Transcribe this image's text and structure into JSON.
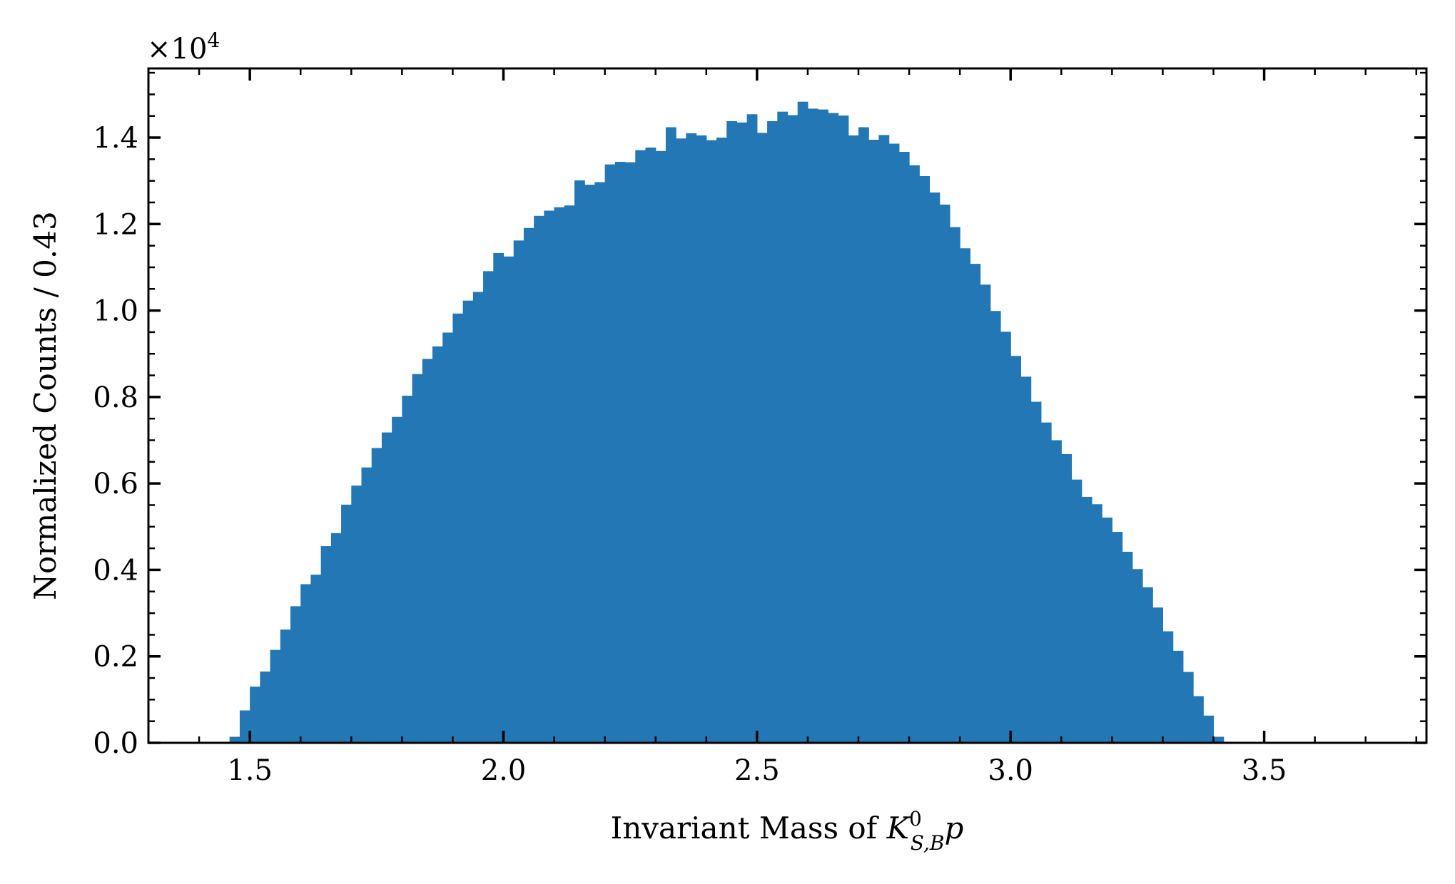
{
  "chart_data": {
    "type": "bar",
    "histogram": true,
    "color": "#2277b4",
    "xlabel_prefix": "Invariant Mass of ",
    "xlabel_math": {
      "base": "K",
      "sup": "0",
      "sub": "S,B",
      "tail": "p"
    },
    "ylabel": "Normalized Counts / 0.43",
    "y_multiplier": {
      "prefix": "×10",
      "exponent": "4"
    },
    "xlim": [
      1.3,
      3.82
    ],
    "ylim": [
      0,
      1.56
    ],
    "xticks": [
      1.5,
      2.0,
      2.5,
      3.0,
      3.5
    ],
    "xtick_labels": [
      "1.5",
      "2.0",
      "2.5",
      "3.0",
      "3.5"
    ],
    "yticks": [
      0.0,
      0.2,
      0.4,
      0.6,
      0.8,
      1.0,
      1.2,
      1.4
    ],
    "ytick_labels": [
      "0.0",
      "0.2",
      "0.4",
      "0.6",
      "0.8",
      "1.0",
      "1.2",
      "1.4"
    ],
    "bin_start": 1.46,
    "bin_width": 0.02,
    "values": [
      0.014,
      0.075,
      0.13,
      0.165,
      0.215,
      0.262,
      0.316,
      0.367,
      0.389,
      0.455,
      0.485,
      0.551,
      0.595,
      0.637,
      0.682,
      0.718,
      0.754,
      0.803,
      0.853,
      0.888,
      0.917,
      0.949,
      0.993,
      1.023,
      1.043,
      1.091,
      1.133,
      1.125,
      1.162,
      1.191,
      1.219,
      1.231,
      1.239,
      1.243,
      1.301,
      1.291,
      1.297,
      1.338,
      1.344,
      1.343,
      1.371,
      1.377,
      1.369,
      1.424,
      1.398,
      1.41,
      1.405,
      1.394,
      1.4,
      1.438,
      1.435,
      1.454,
      1.411,
      1.438,
      1.46,
      1.452,
      1.483,
      1.467,
      1.465,
      1.457,
      1.451,
      1.405,
      1.424,
      1.395,
      1.406,
      1.386,
      1.367,
      1.336,
      1.311,
      1.273,
      1.245,
      1.193,
      1.144,
      1.108,
      1.06,
      0.999,
      0.951,
      0.895,
      0.847,
      0.789,
      0.741,
      0.7,
      0.668,
      0.609,
      0.569,
      0.552,
      0.521,
      0.488,
      0.442,
      0.402,
      0.36,
      0.313,
      0.258,
      0.213,
      0.164,
      0.108,
      0.063,
      0.014
    ]
  }
}
